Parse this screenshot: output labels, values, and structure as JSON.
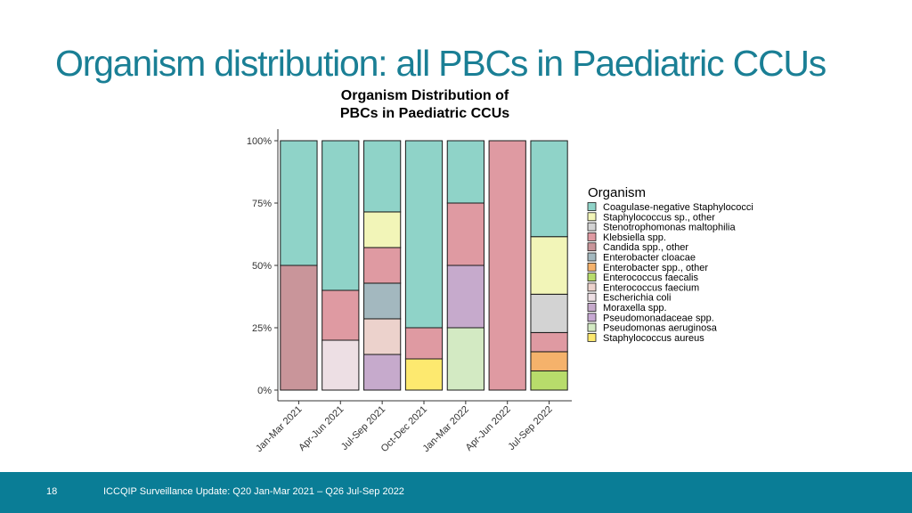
{
  "slide": {
    "title": "Organism distribution: all PBCs in Paediatric CCUs",
    "title_color": "#1a7f95",
    "page_number": "18",
    "footer_text": "ICCQIP Surveillance Update: Q20 Jan-Mar 2021 – Q26 Jul-Sep 2022",
    "footer_color": "#0a7d96"
  },
  "chart_data": {
    "type": "bar",
    "stacked": true,
    "normalized": true,
    "title": [
      "Organism Distribution of",
      "PBCs in Paediatric CCUs"
    ],
    "xlabel": "",
    "ylabel": "",
    "ylim": [
      0,
      100
    ],
    "yticks": [
      "0%",
      "25%",
      "50%",
      "75%",
      "100%"
    ],
    "categories": [
      "Jan-Mar 2021",
      "Apr-Jun 2021",
      "Jul-Sep 2021",
      "Oct-Dec 2021",
      "Jan-Mar 2022",
      "Apr-Jun 2022",
      "Jul-Sep 2022"
    ],
    "legend_title": "Organism",
    "legend_position": "right",
    "series": [
      {
        "name": "Coagulase-negative Staphylococci",
        "color": "#8fd3c8",
        "values": [
          50,
          60,
          28.57,
          75,
          25,
          0,
          38.46
        ]
      },
      {
        "name": "Staphylococcus sp., other",
        "color": "#f2f5b8",
        "values": [
          0,
          0,
          14.29,
          0,
          0,
          0,
          23.08
        ]
      },
      {
        "name": "Stenotrophomonas maltophilia",
        "color": "#d3d3d3",
        "values": [
          0,
          0,
          0,
          0,
          0,
          0,
          15.38
        ]
      },
      {
        "name": "Klebsiella spp.",
        "color": "#df9aa2",
        "values": [
          0,
          20,
          14.29,
          12.5,
          25,
          100,
          7.69
        ]
      },
      {
        "name": "Candida spp., other",
        "color": "#c9959a",
        "values": [
          50,
          0,
          0,
          0,
          0,
          0,
          0
        ]
      },
      {
        "name": "Enterobacter cloacae",
        "color": "#a3b8bf",
        "values": [
          0,
          0,
          14.29,
          0,
          0,
          0,
          0
        ]
      },
      {
        "name": "Enterobacter spp., other",
        "color": "#f5b26b",
        "values": [
          0,
          0,
          0,
          0,
          0,
          0,
          7.69
        ]
      },
      {
        "name": "Enterococcus faecalis",
        "color": "#b8dc6b",
        "values": [
          0,
          0,
          0,
          0,
          0,
          0,
          7.69
        ]
      },
      {
        "name": "Enterococcus faecium",
        "color": "#ecd2cc",
        "values": [
          0,
          0,
          14.29,
          0,
          0,
          0,
          0
        ]
      },
      {
        "name": "Escherichia coli",
        "color": "#eddfe4",
        "values": [
          0,
          20,
          0,
          0,
          0,
          0,
          0
        ]
      },
      {
        "name": "Moraxella spp.",
        "color": "#c6aacc",
        "values": [
          0,
          0,
          14.29,
          0,
          25,
          0,
          0
        ]
      },
      {
        "name": "Pseudomonadaceae spp.",
        "color": "#c7a9d3",
        "values": [
          0,
          0,
          0,
          0,
          0,
          0,
          0
        ]
      },
      {
        "name": "Pseudomonas aeruginosa",
        "color": "#d3eac3",
        "values": [
          0,
          0,
          0,
          0,
          25,
          0,
          0
        ]
      },
      {
        "name": "Staphylococcus aureus",
        "color": "#fde96f",
        "values": [
          0,
          0,
          0,
          12.5,
          0,
          0,
          0
        ]
      }
    ]
  }
}
